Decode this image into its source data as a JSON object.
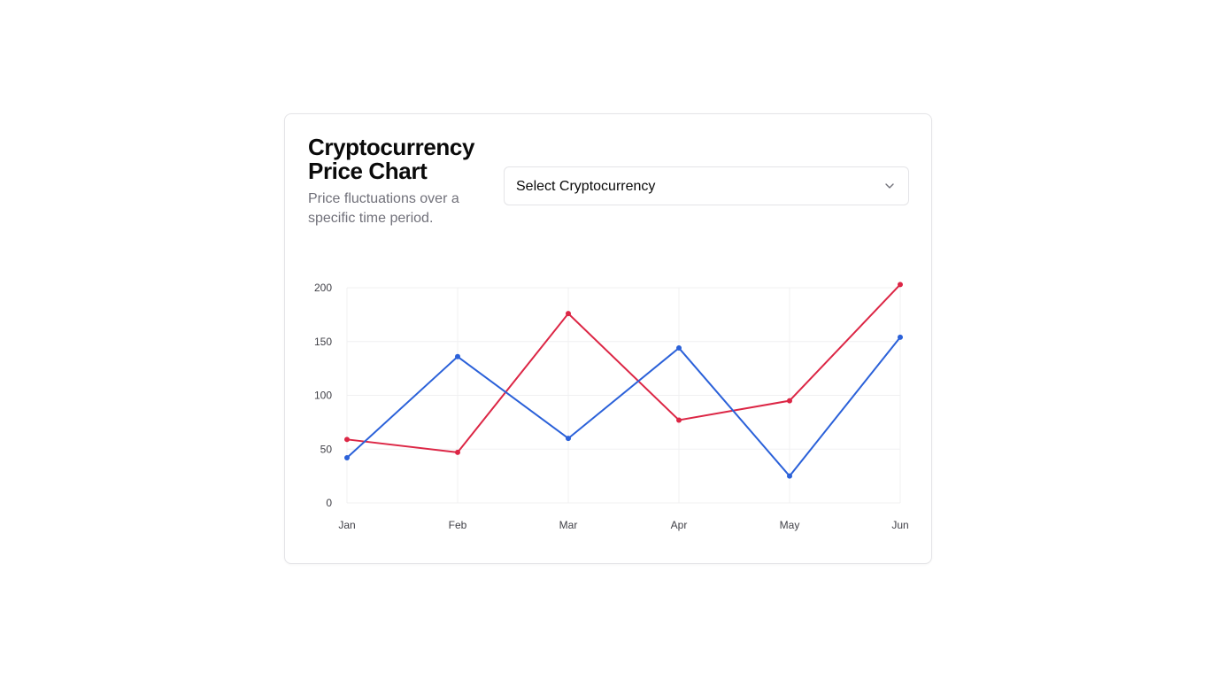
{
  "card": {
    "title": "Cryptocurrency Price Chart",
    "subtitle": "Price fluctuations over a specific time period.",
    "select": {
      "label": "Select Cryptocurrency",
      "icon": "chevron-down-icon"
    }
  },
  "chart_data": {
    "type": "line",
    "title": "",
    "xlabel": "",
    "ylabel": "",
    "categories": [
      "Jan",
      "Feb",
      "Mar",
      "Apr",
      "May",
      "Jun"
    ],
    "ylim": [
      0,
      200
    ],
    "yticks": [
      0,
      50,
      100,
      150,
      200
    ],
    "grid": true,
    "legend": "none",
    "series": [
      {
        "color": "#dc2645",
        "values": [
          59,
          47,
          176,
          77,
          95,
          203
        ]
      },
      {
        "color": "#2b61d9",
        "values": [
          42,
          136,
          60,
          144,
          25,
          154
        ]
      }
    ]
  }
}
